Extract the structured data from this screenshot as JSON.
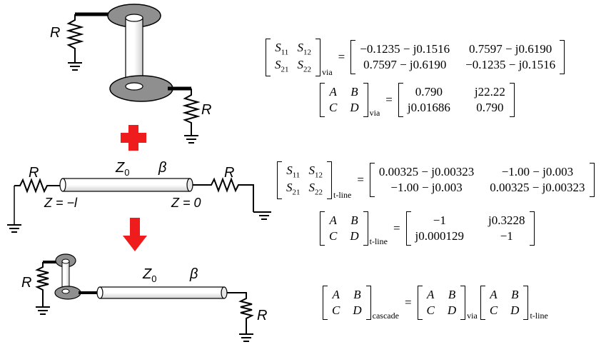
{
  "labels": {
    "R": "R",
    "Z0": "Z",
    "Z0_sub": "0",
    "beta": "β",
    "z_left": "Z = −l",
    "z_right": "Z = 0"
  },
  "colors": {
    "plus_arrow": "#ee1c1c",
    "pad": "#8f8f8f",
    "wire": "#000000"
  },
  "icons": [
    "red-plus-icon",
    "red-down-arrow-icon",
    "ground-icon",
    "resistor-icon"
  ],
  "eq1": {
    "lhs": [
      "S11",
      "S12",
      "S21",
      "S22"
    ],
    "lhs_sub": "via",
    "rhs": [
      "−0.1235 − j0.1516",
      "0.7597 − j0.6190",
      "0.7597 − j0.6190",
      "−0.1235 − j0.1516"
    ]
  },
  "eq2": {
    "lhs": [
      "A",
      "B",
      "C",
      "D"
    ],
    "lhs_sub": "via",
    "rhs": [
      "0.790",
      "j22.22",
      "j0.01686",
      "0.790"
    ]
  },
  "eq3": {
    "lhs": [
      "S11",
      "S12",
      "S21",
      "S22"
    ],
    "lhs_sub": "t-line",
    "rhs": [
      "0.00325 − j0.00323",
      "−1.00 − j0.003",
      "−1.00 − j0.003",
      "0.00325 − j0.00323"
    ]
  },
  "eq4": {
    "lhs": [
      "A",
      "B",
      "C",
      "D"
    ],
    "lhs_sub": "t-line",
    "rhs": [
      "−1",
      "j0.3228",
      "j0.000129",
      "−1"
    ]
  },
  "eq5": {
    "lhs": [
      "A",
      "B",
      "C",
      "D"
    ],
    "lhs_sub": "cascade",
    "m1": [
      "A",
      "B",
      "C",
      "D"
    ],
    "m1_sub": "via",
    "m2": [
      "A",
      "B",
      "C",
      "D"
    ],
    "m2_sub": "t-line"
  },
  "equals": "="
}
